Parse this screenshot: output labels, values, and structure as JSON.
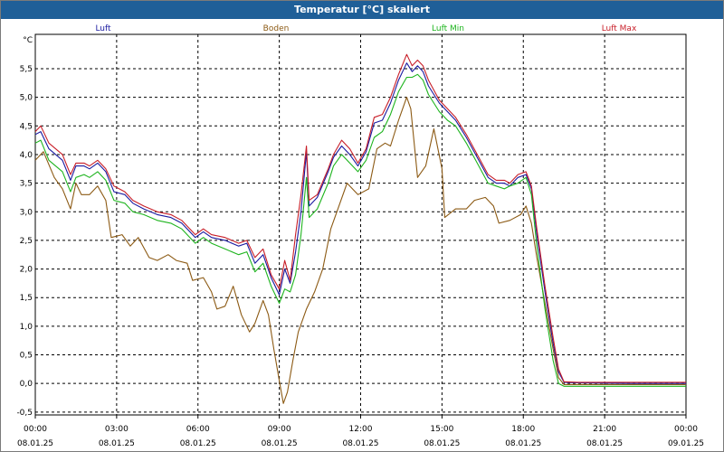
{
  "window": {
    "title": "Temperatur [°C] skaliert"
  },
  "chart_data": {
    "type": "line",
    "title": "Temperatur [°C] skaliert",
    "ylabel": "°C",
    "xlabel": "",
    "ylim": [
      -0.55,
      6.1
    ],
    "xlim_hours": [
      0,
      24
    ],
    "grid": true,
    "y_ticks": [
      "-0,5",
      "0,0",
      "0,5",
      "1,0",
      "1,5",
      "2,0",
      "2,5",
      "3,0",
      "3,5",
      "4,0",
      "4,5",
      "5,0",
      "5,5"
    ],
    "x_ticks": [
      {
        "time": "00:00",
        "date": "08.01.25"
      },
      {
        "time": "03:00",
        "date": "08.01.25"
      },
      {
        "time": "06:00",
        "date": "08.01.25"
      },
      {
        "time": "09:00",
        "date": "08.01.25"
      },
      {
        "time": "12:00",
        "date": "08.01.25"
      },
      {
        "time": "15:00",
        "date": "08.01.25"
      },
      {
        "time": "18:00",
        "date": "08.01.25"
      },
      {
        "time": "21:00",
        "date": "08.01.25"
      },
      {
        "time": "00:00",
        "date": "09.01.25"
      }
    ],
    "series": [
      {
        "name": "Luft",
        "color": "#1a1aa0",
        "points": [
          [
            0,
            4.35
          ],
          [
            0.2,
            4.4
          ],
          [
            0.5,
            4.1
          ],
          [
            1,
            3.9
          ],
          [
            1.3,
            3.55
          ],
          [
            1.5,
            3.8
          ],
          [
            1.8,
            3.8
          ],
          [
            2,
            3.75
          ],
          [
            2.3,
            3.85
          ],
          [
            2.6,
            3.7
          ],
          [
            2.9,
            3.35
          ],
          [
            3.3,
            3.3
          ],
          [
            3.6,
            3.15
          ],
          [
            4,
            3.05
          ],
          [
            4.5,
            2.95
          ],
          [
            5,
            2.9
          ],
          [
            5.4,
            2.8
          ],
          [
            5.9,
            2.55
          ],
          [
            6.2,
            2.65
          ],
          [
            6.5,
            2.55
          ],
          [
            7,
            2.5
          ],
          [
            7.5,
            2.4
          ],
          [
            7.8,
            2.45
          ],
          [
            8.1,
            2.1
          ],
          [
            8.4,
            2.25
          ],
          [
            8.7,
            1.85
          ],
          [
            9,
            1.55
          ],
          [
            9.2,
            2.0
          ],
          [
            9.4,
            1.75
          ],
          [
            9.6,
            2.3
          ],
          [
            9.8,
            3.0
          ],
          [
            10,
            4.05
          ],
          [
            10.1,
            3.1
          ],
          [
            10.4,
            3.25
          ],
          [
            10.8,
            3.7
          ],
          [
            11,
            3.95
          ],
          [
            11.3,
            4.15
          ],
          [
            11.6,
            4.0
          ],
          [
            11.9,
            3.8
          ],
          [
            12.2,
            4.05
          ],
          [
            12.5,
            4.55
          ],
          [
            12.8,
            4.6
          ],
          [
            13.1,
            4.9
          ],
          [
            13.4,
            5.3
          ],
          [
            13.7,
            5.6
          ],
          [
            13.9,
            5.45
          ],
          [
            14.1,
            5.55
          ],
          [
            14.3,
            5.45
          ],
          [
            14.5,
            5.2
          ],
          [
            14.9,
            4.9
          ],
          [
            15.2,
            4.75
          ],
          [
            15.5,
            4.6
          ],
          [
            15.9,
            4.3
          ],
          [
            16.3,
            3.95
          ],
          [
            16.7,
            3.6
          ],
          [
            17,
            3.5
          ],
          [
            17.3,
            3.5
          ],
          [
            17.5,
            3.45
          ],
          [
            17.8,
            3.6
          ],
          [
            18.1,
            3.65
          ],
          [
            18.3,
            3.4
          ],
          [
            18.5,
            2.6
          ],
          [
            18.8,
            1.6
          ],
          [
            19.1,
            0.7
          ],
          [
            19.3,
            0.2
          ],
          [
            19.5,
            0.02
          ],
          [
            20,
            0.01
          ],
          [
            22,
            0.0
          ],
          [
            24,
            0.0
          ]
        ]
      },
      {
        "name": "Boden",
        "color": "#8c5a14",
        "points": [
          [
            0,
            3.9
          ],
          [
            0.3,
            4.05
          ],
          [
            0.7,
            3.6
          ],
          [
            1,
            3.4
          ],
          [
            1.3,
            3.05
          ],
          [
            1.5,
            3.5
          ],
          [
            1.7,
            3.3
          ],
          [
            2,
            3.3
          ],
          [
            2.3,
            3.45
          ],
          [
            2.6,
            3.2
          ],
          [
            2.8,
            2.55
          ],
          [
            3.2,
            2.6
          ],
          [
            3.5,
            2.4
          ],
          [
            3.8,
            2.55
          ],
          [
            4.2,
            2.2
          ],
          [
            4.5,
            2.15
          ],
          [
            4.9,
            2.25
          ],
          [
            5.2,
            2.15
          ],
          [
            5.6,
            2.1
          ],
          [
            5.8,
            1.8
          ],
          [
            6.2,
            1.85
          ],
          [
            6.5,
            1.6
          ],
          [
            6.7,
            1.3
          ],
          [
            7,
            1.35
          ],
          [
            7.3,
            1.7
          ],
          [
            7.6,
            1.2
          ],
          [
            7.9,
            0.9
          ],
          [
            8.1,
            1.05
          ],
          [
            8.4,
            1.45
          ],
          [
            8.6,
            1.2
          ],
          [
            8.8,
            0.6
          ],
          [
            9,
            0.05
          ],
          [
            9.15,
            -0.35
          ],
          [
            9.3,
            -0.15
          ],
          [
            9.5,
            0.4
          ],
          [
            9.7,
            0.9
          ],
          [
            10,
            1.3
          ],
          [
            10.3,
            1.6
          ],
          [
            10.6,
            2.0
          ],
          [
            10.9,
            2.7
          ],
          [
            11.2,
            3.1
          ],
          [
            11.5,
            3.5
          ],
          [
            11.9,
            3.3
          ],
          [
            12.3,
            3.4
          ],
          [
            12.6,
            4.1
          ],
          [
            12.9,
            4.2
          ],
          [
            13.1,
            4.15
          ],
          [
            13.4,
            4.6
          ],
          [
            13.7,
            5.0
          ],
          [
            13.85,
            4.8
          ],
          [
            14.1,
            3.6
          ],
          [
            14.4,
            3.8
          ],
          [
            14.7,
            4.45
          ],
          [
            15,
            3.75
          ],
          [
            15.1,
            2.9
          ],
          [
            15.5,
            3.05
          ],
          [
            15.9,
            3.05
          ],
          [
            16.2,
            3.2
          ],
          [
            16.6,
            3.25
          ],
          [
            16.9,
            3.1
          ],
          [
            17.1,
            2.8
          ],
          [
            17.5,
            2.85
          ],
          [
            17.9,
            2.95
          ],
          [
            18.1,
            3.1
          ],
          [
            18.3,
            2.8
          ],
          [
            18.5,
            2.2
          ],
          [
            18.8,
            1.4
          ],
          [
            19.1,
            0.6
          ],
          [
            19.3,
            0.1
          ],
          [
            19.5,
            -0.02
          ],
          [
            20,
            -0.02
          ],
          [
            22,
            -0.02
          ],
          [
            24,
            -0.02
          ]
        ]
      },
      {
        "name": "Luft Min",
        "color": "#1eb41e",
        "points": [
          [
            0,
            4.2
          ],
          [
            0.2,
            4.25
          ],
          [
            0.5,
            3.9
          ],
          [
            1,
            3.7
          ],
          [
            1.3,
            3.35
          ],
          [
            1.5,
            3.6
          ],
          [
            1.8,
            3.65
          ],
          [
            2,
            3.6
          ],
          [
            2.3,
            3.7
          ],
          [
            2.6,
            3.55
          ],
          [
            2.9,
            3.2
          ],
          [
            3.3,
            3.15
          ],
          [
            3.6,
            3.0
          ],
          [
            4,
            2.95
          ],
          [
            4.5,
            2.85
          ],
          [
            5,
            2.8
          ],
          [
            5.4,
            2.7
          ],
          [
            5.9,
            2.45
          ],
          [
            6.2,
            2.55
          ],
          [
            6.5,
            2.45
          ],
          [
            7,
            2.35
          ],
          [
            7.5,
            2.25
          ],
          [
            7.8,
            2.3
          ],
          [
            8.1,
            1.95
          ],
          [
            8.4,
            2.1
          ],
          [
            8.7,
            1.7
          ],
          [
            9,
            1.4
          ],
          [
            9.2,
            1.65
          ],
          [
            9.4,
            1.6
          ],
          [
            9.6,
            1.9
          ],
          [
            9.8,
            2.6
          ],
          [
            10,
            3.6
          ],
          [
            10.1,
            2.9
          ],
          [
            10.4,
            3.05
          ],
          [
            10.8,
            3.5
          ],
          [
            11,
            3.8
          ],
          [
            11.3,
            4.0
          ],
          [
            11.6,
            3.85
          ],
          [
            11.9,
            3.7
          ],
          [
            12.2,
            3.9
          ],
          [
            12.5,
            4.3
          ],
          [
            12.8,
            4.4
          ],
          [
            13.1,
            4.7
          ],
          [
            13.4,
            5.1
          ],
          [
            13.7,
            5.35
          ],
          [
            13.9,
            5.35
          ],
          [
            14.1,
            5.4
          ],
          [
            14.3,
            5.3
          ],
          [
            14.5,
            5.05
          ],
          [
            14.9,
            4.75
          ],
          [
            15.2,
            4.6
          ],
          [
            15.5,
            4.5
          ],
          [
            15.9,
            4.2
          ],
          [
            16.3,
            3.85
          ],
          [
            16.7,
            3.5
          ],
          [
            17,
            3.45
          ],
          [
            17.3,
            3.4
          ],
          [
            17.5,
            3.45
          ],
          [
            17.8,
            3.5
          ],
          [
            18.1,
            3.6
          ],
          [
            18.3,
            3.3
          ],
          [
            18.5,
            2.4
          ],
          [
            18.8,
            1.3
          ],
          [
            19.1,
            0.4
          ],
          [
            19.3,
            0.0
          ],
          [
            19.5,
            -0.05
          ],
          [
            20,
            -0.05
          ],
          [
            22,
            -0.05
          ],
          [
            24,
            -0.05
          ]
        ]
      },
      {
        "name": "Luft Max",
        "color": "#c81e28",
        "points": [
          [
            0,
            4.4
          ],
          [
            0.2,
            4.5
          ],
          [
            0.5,
            4.2
          ],
          [
            1,
            4.0
          ],
          [
            1.3,
            3.65
          ],
          [
            1.5,
            3.85
          ],
          [
            1.8,
            3.85
          ],
          [
            2,
            3.8
          ],
          [
            2.3,
            3.9
          ],
          [
            2.6,
            3.75
          ],
          [
            2.9,
            3.45
          ],
          [
            3.3,
            3.35
          ],
          [
            3.6,
            3.2
          ],
          [
            4,
            3.1
          ],
          [
            4.5,
            3.0
          ],
          [
            5,
            2.95
          ],
          [
            5.4,
            2.85
          ],
          [
            5.9,
            2.6
          ],
          [
            6.2,
            2.7
          ],
          [
            6.5,
            2.6
          ],
          [
            7,
            2.55
          ],
          [
            7.5,
            2.45
          ],
          [
            7.8,
            2.5
          ],
          [
            8.1,
            2.2
          ],
          [
            8.4,
            2.35
          ],
          [
            8.7,
            1.9
          ],
          [
            9,
            1.65
          ],
          [
            9.2,
            2.15
          ],
          [
            9.4,
            1.8
          ],
          [
            9.6,
            2.6
          ],
          [
            9.8,
            3.3
          ],
          [
            10,
            4.15
          ],
          [
            10.1,
            3.2
          ],
          [
            10.4,
            3.3
          ],
          [
            10.8,
            3.75
          ],
          [
            11,
            4.0
          ],
          [
            11.3,
            4.25
          ],
          [
            11.6,
            4.1
          ],
          [
            11.9,
            3.85
          ],
          [
            12.2,
            4.1
          ],
          [
            12.5,
            4.65
          ],
          [
            12.8,
            4.7
          ],
          [
            13.1,
            5.0
          ],
          [
            13.4,
            5.4
          ],
          [
            13.7,
            5.75
          ],
          [
            13.9,
            5.55
          ],
          [
            14.1,
            5.65
          ],
          [
            14.3,
            5.55
          ],
          [
            14.5,
            5.3
          ],
          [
            14.9,
            4.95
          ],
          [
            15.2,
            4.8
          ],
          [
            15.5,
            4.65
          ],
          [
            15.9,
            4.35
          ],
          [
            16.3,
            4.0
          ],
          [
            16.7,
            3.65
          ],
          [
            17,
            3.55
          ],
          [
            17.3,
            3.55
          ],
          [
            17.5,
            3.5
          ],
          [
            17.8,
            3.65
          ],
          [
            18.1,
            3.7
          ],
          [
            18.3,
            3.45
          ],
          [
            18.5,
            2.7
          ],
          [
            18.8,
            1.7
          ],
          [
            19.1,
            0.8
          ],
          [
            19.3,
            0.25
          ],
          [
            19.5,
            0.03
          ],
          [
            20,
            0.02
          ],
          [
            22,
            0.02
          ],
          [
            24,
            0.02
          ]
        ]
      }
    ]
  }
}
